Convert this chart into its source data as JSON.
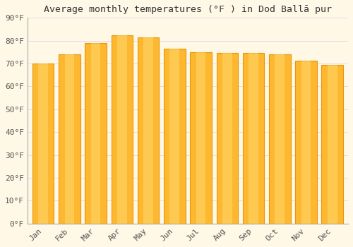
{
  "title": "Average monthly temperatures (°F ) in Dod Ballā pur",
  "months": [
    "Jan",
    "Feb",
    "Mar",
    "Apr",
    "May",
    "Jun",
    "Jul",
    "Aug",
    "Sep",
    "Oct",
    "Nov",
    "Dec"
  ],
  "values": [
    70.0,
    73.9,
    79.0,
    82.4,
    81.3,
    76.6,
    75.0,
    74.5,
    74.5,
    74.1,
    71.2,
    69.4
  ],
  "bar_color": "#FDB830",
  "bar_edge_color": "#E8960A",
  "background_color": "#FFF8E7",
  "plot_bg_color": "#FFF8E7",
  "ylim": [
    0,
    90
  ],
  "yticks": [
    0,
    10,
    20,
    30,
    40,
    50,
    60,
    70,
    80,
    90
  ],
  "ytick_labels": [
    "0°F",
    "10°F",
    "20°F",
    "30°F",
    "40°F",
    "50°F",
    "60°F",
    "70°F",
    "80°F",
    "90°F"
  ],
  "title_fontsize": 9.5,
  "tick_fontsize": 8,
  "grid_color": "#E0DCE8",
  "spine_color": "#AAAAAA",
  "bar_width": 0.82
}
